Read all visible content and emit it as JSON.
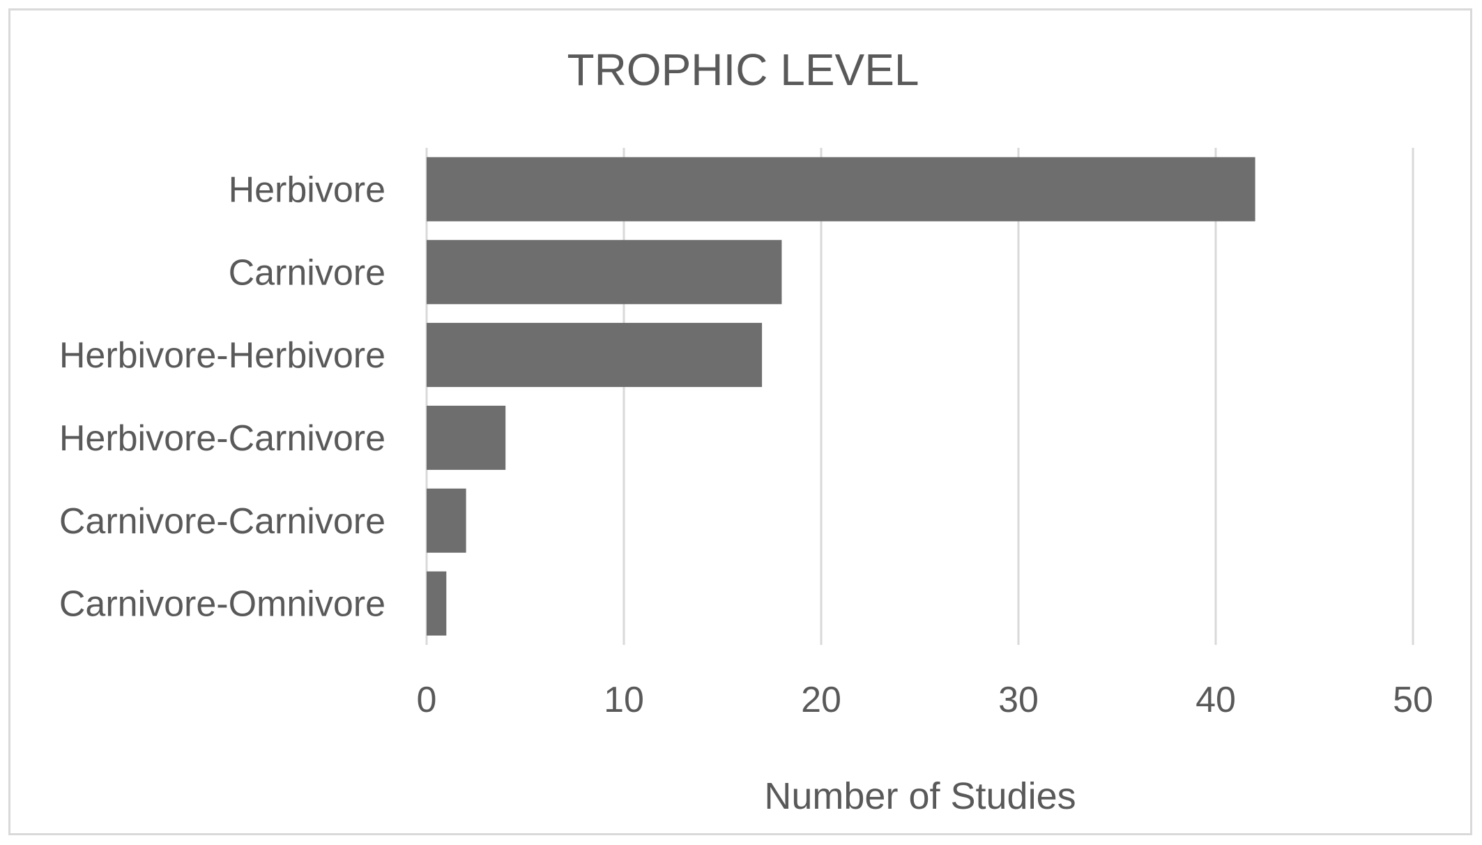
{
  "chart_data": {
    "type": "bar",
    "orientation": "horizontal",
    "title": "TROPHIC LEVEL",
    "xlabel": "Number of Studies",
    "ylabel": "",
    "categories": [
      "Herbivore",
      "Carnivore",
      "Herbivore-Herbivore",
      "Herbivore-Carnivore",
      "Carnivore-Carnivore",
      "Carnivore-Omnivore"
    ],
    "values": [
      42,
      18,
      17,
      4,
      2,
      1
    ],
    "xlim": [
      0,
      50
    ],
    "xticks": [
      0,
      10,
      20,
      30,
      40,
      50
    ],
    "grid": "vertical",
    "legend": "none",
    "colors": {
      "bar": "#6e6e6e",
      "grid": "#d9d9d9",
      "text": "#595959",
      "frame": "#d9d9d9"
    }
  }
}
